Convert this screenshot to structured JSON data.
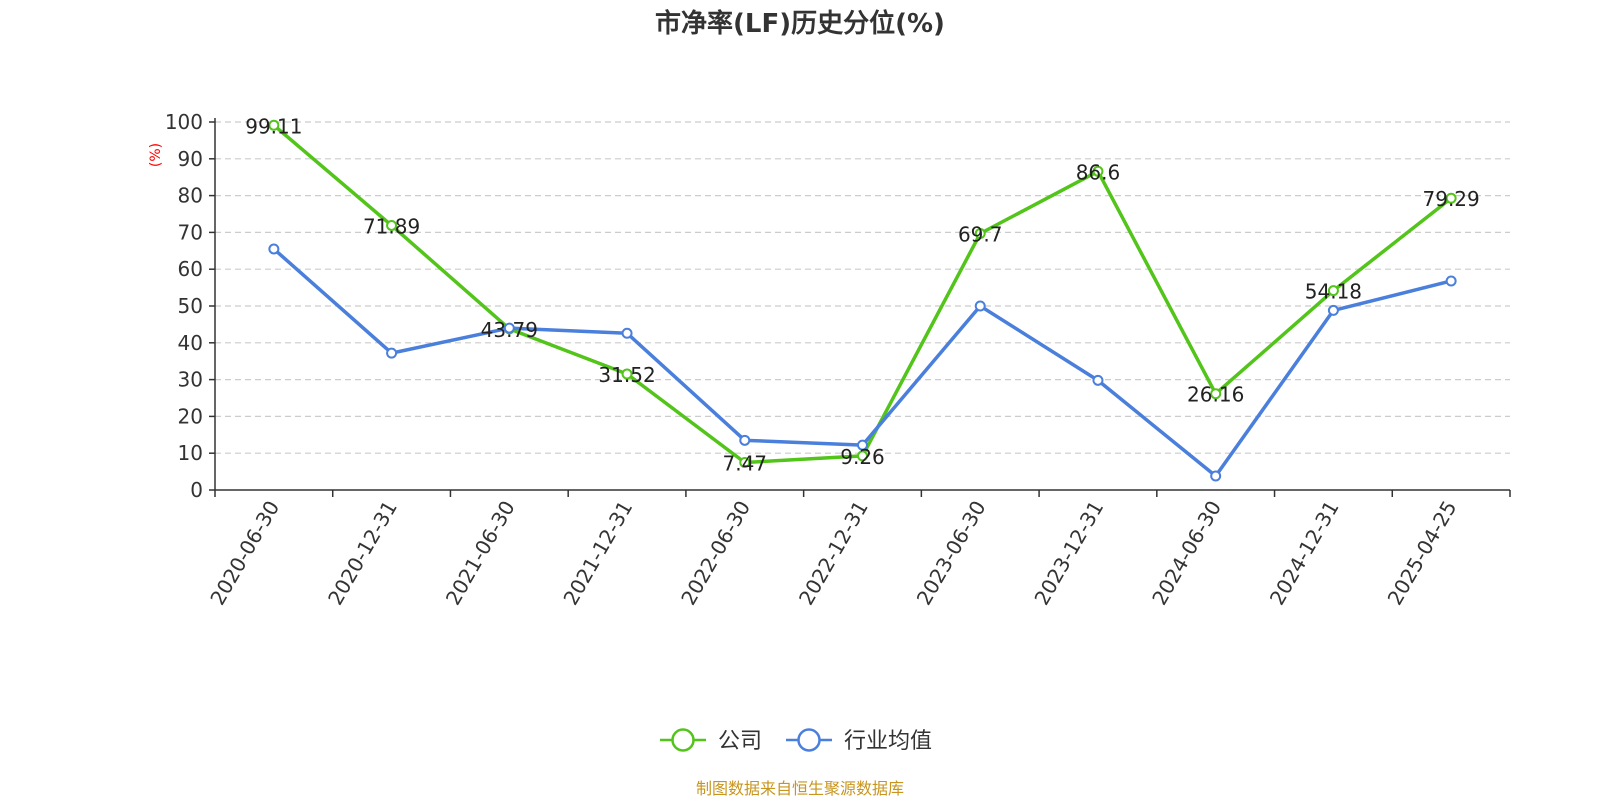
{
  "chart_data": {
    "type": "line",
    "title": "市净率(LF)历史分位(%)",
    "ylabel": "(%)",
    "xlabel": "",
    "ylim": [
      0,
      100
    ],
    "yticks": [
      0,
      10,
      20,
      30,
      40,
      50,
      60,
      70,
      80,
      90,
      100
    ],
    "grid": true,
    "legend_position": "bottom-center",
    "categories": [
      "2020-06-30",
      "2020-12-31",
      "2021-06-30",
      "2021-12-31",
      "2022-06-30",
      "2022-12-31",
      "2023-06-30",
      "2023-12-31",
      "2024-06-30",
      "2024-12-31",
      "2025-04-25"
    ],
    "series": [
      {
        "name": "公司",
        "color": "#52c41a",
        "values": [
          99.11,
          71.89,
          43.79,
          31.52,
          7.47,
          9.26,
          69.7,
          86.6,
          26.16,
          54.18,
          79.29
        ],
        "labels": [
          "99.11",
          "71.89",
          "43.79",
          "31.52",
          "7.47",
          "9.26",
          "69.7",
          "86.6",
          "26.16",
          "54.18",
          "79.29"
        ]
      },
      {
        "name": "行业均值",
        "color": "#4a7fdc",
        "values": [
          65.5,
          37.2,
          44.0,
          42.6,
          13.5,
          12.2,
          50.0,
          29.8,
          3.8,
          48.8,
          56.8
        ]
      }
    ]
  },
  "source_note": "制图数据来自恒生聚源数据库"
}
